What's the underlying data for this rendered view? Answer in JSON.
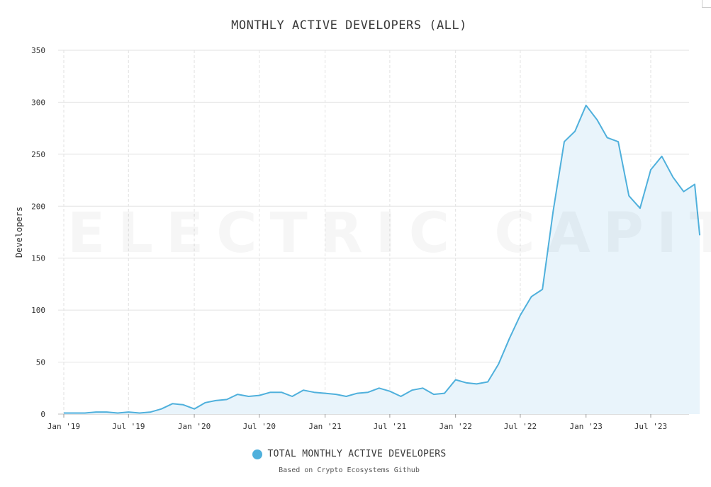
{
  "title": "MONTHLY ACTIVE DEVELOPERS (ALL)",
  "watermark": "ELECTRIC CAPITAL",
  "legend_label": "TOTAL MONTHLY ACTIVE DEVELOPERS",
  "source_note": "Based on Crypto Ecosystems Github",
  "colors": {
    "line": "#4fb0dc",
    "fill": "#e9f4fb",
    "grid": "#e2e2e2"
  },
  "chart_data": {
    "type": "area",
    "title": "MONTHLY ACTIVE DEVELOPERS (ALL)",
    "xlabel": "",
    "ylabel": "Developers",
    "ylim": [
      0,
      350
    ],
    "yticks": [
      0,
      50,
      100,
      150,
      200,
      250,
      300,
      350
    ],
    "xlim": [
      "2019-01-01",
      "2023-11-15"
    ],
    "xticks": [
      {
        "date": "2019-01-01",
        "label": "Jan '19"
      },
      {
        "date": "2019-07-01",
        "label": "Jul '19"
      },
      {
        "date": "2020-01-01",
        "label": "Jan '20"
      },
      {
        "date": "2020-07-01",
        "label": "Jul '20"
      },
      {
        "date": "2021-01-01",
        "label": "Jan '21"
      },
      {
        "date": "2021-07-01",
        "label": "Jul '21"
      },
      {
        "date": "2022-01-01",
        "label": "Jan '22"
      },
      {
        "date": "2022-07-01",
        "label": "Jul '22"
      },
      {
        "date": "2023-01-01",
        "label": "Jan '23"
      },
      {
        "date": "2023-07-01",
        "label": "Jul '23"
      }
    ],
    "grid": true,
    "legend_position": "bottom",
    "series": [
      {
        "name": "TOTAL MONTHLY ACTIVE DEVELOPERS",
        "points": [
          [
            "2019-01-01",
            1
          ],
          [
            "2019-02-01",
            1
          ],
          [
            "2019-03-01",
            1
          ],
          [
            "2019-04-01",
            2
          ],
          [
            "2019-05-01",
            2
          ],
          [
            "2019-06-01",
            1
          ],
          [
            "2019-07-01",
            2
          ],
          [
            "2019-08-01",
            1
          ],
          [
            "2019-09-01",
            2
          ],
          [
            "2019-10-01",
            5
          ],
          [
            "2019-11-01",
            10
          ],
          [
            "2019-12-01",
            9
          ],
          [
            "2020-01-01",
            5
          ],
          [
            "2020-02-01",
            11
          ],
          [
            "2020-03-01",
            13
          ],
          [
            "2020-04-01",
            14
          ],
          [
            "2020-05-01",
            19
          ],
          [
            "2020-06-01",
            17
          ],
          [
            "2020-07-01",
            18
          ],
          [
            "2020-08-01",
            21
          ],
          [
            "2020-09-01",
            21
          ],
          [
            "2020-10-01",
            17
          ],
          [
            "2020-11-01",
            23
          ],
          [
            "2020-12-01",
            21
          ],
          [
            "2021-01-01",
            20
          ],
          [
            "2021-02-01",
            19
          ],
          [
            "2021-03-01",
            17
          ],
          [
            "2021-04-01",
            20
          ],
          [
            "2021-05-01",
            21
          ],
          [
            "2021-06-01",
            25
          ],
          [
            "2021-07-01",
            22
          ],
          [
            "2021-08-01",
            17
          ],
          [
            "2021-09-01",
            23
          ],
          [
            "2021-10-01",
            25
          ],
          [
            "2021-11-01",
            19
          ],
          [
            "2021-12-01",
            20
          ],
          [
            "2022-01-01",
            33
          ],
          [
            "2022-02-01",
            30
          ],
          [
            "2022-03-01",
            29
          ],
          [
            "2022-04-01",
            31
          ],
          [
            "2022-05-01",
            48
          ],
          [
            "2022-06-01",
            73
          ],
          [
            "2022-07-01",
            95
          ],
          [
            "2022-08-01",
            113
          ],
          [
            "2022-09-01",
            120
          ],
          [
            "2022-10-01",
            195
          ],
          [
            "2022-11-01",
            262
          ],
          [
            "2022-12-01",
            272
          ],
          [
            "2023-01-01",
            297
          ],
          [
            "2023-02-01",
            283
          ],
          [
            "2023-03-01",
            266
          ],
          [
            "2023-04-01",
            262
          ],
          [
            "2023-05-01",
            210
          ],
          [
            "2023-06-01",
            198
          ],
          [
            "2023-07-01",
            235
          ],
          [
            "2023-08-01",
            248
          ],
          [
            "2023-09-01",
            228
          ],
          [
            "2023-10-01",
            214
          ],
          [
            "2023-11-01",
            221
          ],
          [
            "2023-11-15",
            172
          ]
        ]
      }
    ]
  }
}
